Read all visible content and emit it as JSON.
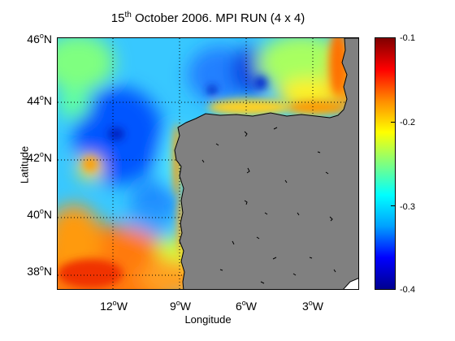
{
  "title": {
    "pre": "15",
    "sup": "th",
    "post": " October 2006. MPI RUN (4 x 4)"
  },
  "axes": {
    "xlabel": "Longitude",
    "ylabel": "Latitude",
    "yticks": [
      "38",
      "40",
      "42",
      "44",
      "46"
    ],
    "xticks": [
      "12",
      "9",
      "6",
      "3"
    ],
    "y_hemisphere": "N",
    "x_hemisphere": "W",
    "degree_symbol": "o"
  },
  "colorbar": {
    "ticks": [
      "-0.1",
      "-0.2",
      "-0.3",
      "-0.4"
    ],
    "range": [
      -0.4,
      -0.1
    ],
    "colormap": "jet",
    "stops": [
      "#00008f",
      "#0000ff",
      "#00a0ff",
      "#00ffff",
      "#7fff7f",
      "#ffff00",
      "#ff8c00",
      "#ff0000",
      "#800000"
    ]
  },
  "map": {
    "lon_range": [
      -14.7,
      -0.8
    ],
    "lat_range": [
      37.3,
      46.0
    ],
    "land_color": "#808080",
    "coast_color": "#000000",
    "grid": "dotted",
    "dominant_water_color": "#30c8ff"
  }
}
